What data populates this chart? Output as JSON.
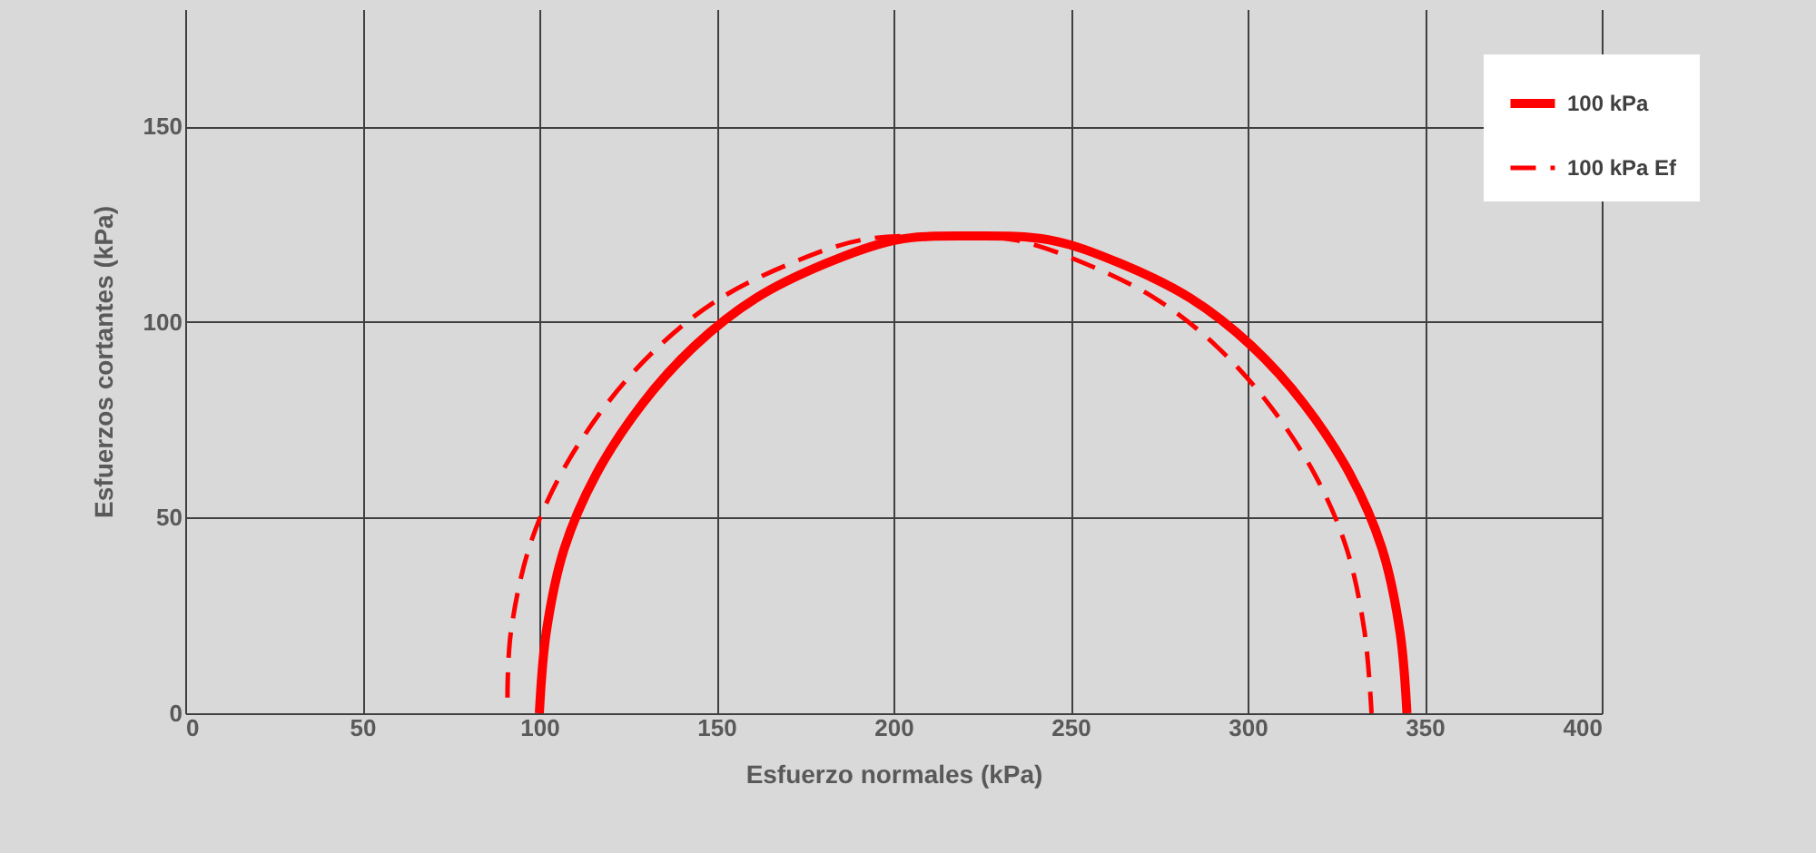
{
  "chart_data": {
    "type": "line",
    "xlabel": "Esfuerzo normales (kPa)",
    "ylabel": "Esfuerzos cortantes (kPa)",
    "xlim": [
      0,
      400
    ],
    "xticks": [
      0,
      50,
      100,
      150,
      200,
      250,
      300,
      350,
      400
    ],
    "ylim": [
      0,
      180
    ],
    "yticks": [
      0,
      50,
      100,
      150
    ],
    "grid": true,
    "legend": "right",
    "marker": "none",
    "series": [
      {
        "name": "100 kPa",
        "color": "#ff0000",
        "line_style": "solid",
        "x": [
          100,
          102,
          107,
          116,
          129,
          144,
          161,
          181,
          201,
          222,
          244,
          264,
          284,
          301,
          316,
          329,
          338,
          343,
          345
        ],
        "values": [
          0,
          21,
          42,
          61,
          79,
          94,
          106,
          115,
          121,
          122,
          121,
          115,
          106,
          94,
          79,
          61,
          42,
          21,
          0
        ]
      },
      {
        "name": "100 kPa Ef",
        "color": "#ff0000",
        "line_style": "dashed",
        "x": [
          91,
          92,
          97,
          106,
          119,
          134,
          151,
          171,
          191,
          212,
          234,
          254,
          274,
          291,
          306,
          319,
          328,
          333,
          335
        ],
        "values": [
          4,
          21,
          42,
          61,
          79,
          94,
          106,
          115,
          121,
          122,
          121,
          115,
          106,
          94,
          79,
          61,
          42,
          21,
          0
        ]
      }
    ]
  }
}
